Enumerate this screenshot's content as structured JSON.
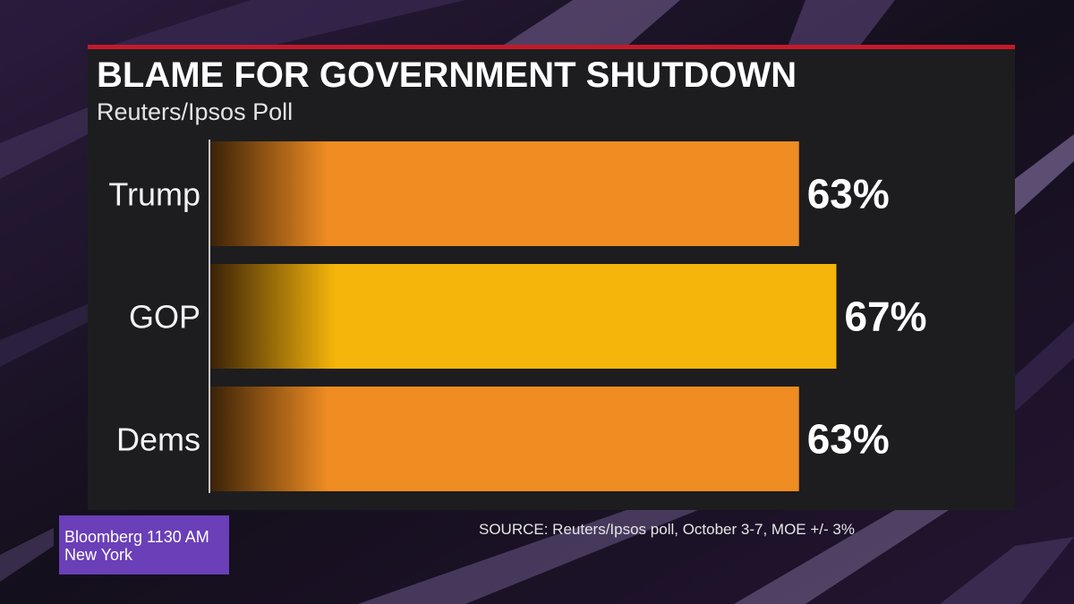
{
  "chart_data": {
    "type": "bar",
    "orientation": "horizontal",
    "title": "BLAME FOR GOVERNMENT SHUTDOWN",
    "subtitle": "Reuters/Ipsos Poll",
    "categories": [
      "Trump",
      "GOP",
      "Dems"
    ],
    "values": [
      63,
      67,
      63
    ],
    "value_labels": [
      "63%",
      "67%",
      "63%"
    ],
    "bar_colors": [
      "#ef8c22",
      "#f5b50a",
      "#ef8c22"
    ],
    "xlim": [
      0,
      100
    ],
    "grid": false,
    "legend": "none"
  },
  "source": "SOURCE: Reuters/Ipsos poll, October 3-7, MOE +/- 3%",
  "station": {
    "line1": "Bloomberg 1130 AM",
    "line2": "New York"
  },
  "colors": {
    "accent_red": "#c41a2a",
    "panel": "#1d1d1f",
    "station_purple": "#6a3fb8"
  }
}
